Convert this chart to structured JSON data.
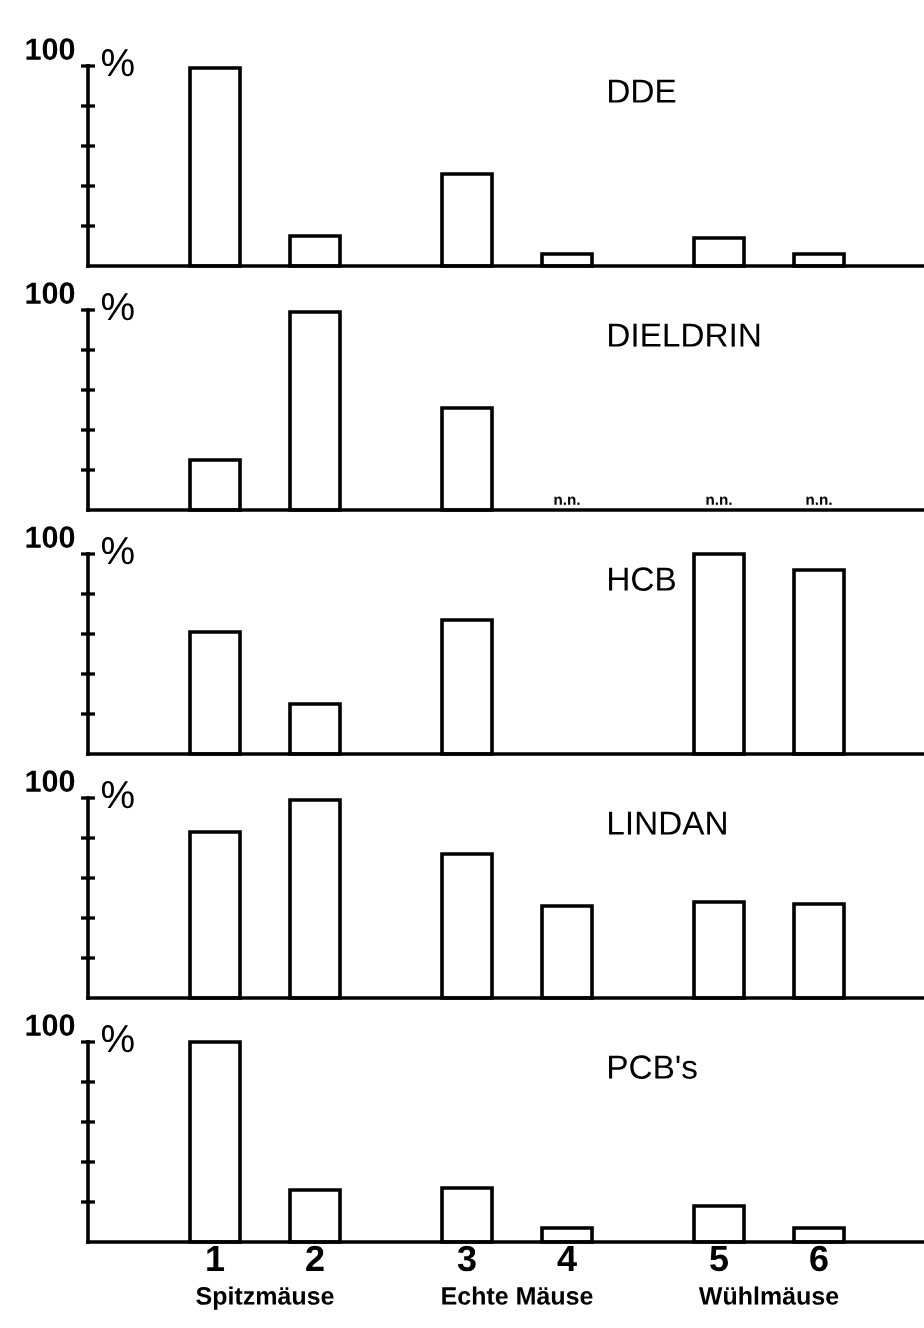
{
  "chart_data": [
    {
      "type": "bar",
      "title": "DDE",
      "ylabel": "%",
      "categories": [
        "1",
        "2",
        "3",
        "4",
        "5",
        "6"
      ],
      "values": [
        99,
        15,
        46,
        6,
        14,
        6
      ],
      "color": "#ffffff",
      "ylim": [
        0,
        100
      ],
      "yticks": [
        {
          "value": 20,
          "label": null
        },
        {
          "value": 40,
          "label": null
        },
        {
          "value": 60,
          "label": null
        },
        {
          "value": 80,
          "label": null
        },
        100
      ],
      "tick_labels": "y"
    },
    {
      "type": "bar",
      "title": "DIELDRIN",
      "ylabel": "%",
      "categories": [
        "1",
        "2",
        "3",
        "4",
        "5",
        "6"
      ],
      "values": [
        25,
        99,
        51,
        null,
        null,
        null
      ],
      "value_labels": [
        null,
        null,
        null,
        "n.n.",
        "n.n.",
        "n.n."
      ],
      "color": "#ffffff",
      "ylim": [
        0,
        100
      ],
      "yticks": [
        {
          "value": 20,
          "label": null
        },
        {
          "value": 40,
          "label": null
        },
        {
          "value": 60,
          "label": null
        },
        {
          "value": 80,
          "label": null
        },
        100
      ],
      "tick_labels": "y"
    },
    {
      "type": "bar",
      "title": "HCB",
      "ylabel": "%",
      "categories": [
        "1",
        "2",
        "3",
        "4",
        "5",
        "6"
      ],
      "values": [
        61,
        25,
        67,
        null,
        100,
        92
      ],
      "color": "#ffffff",
      "ylim": [
        0,
        100
      ],
      "yticks": [
        {
          "value": 20,
          "label": null
        },
        {
          "value": 40,
          "label": null
        },
        {
          "value": 60,
          "label": null
        },
        {
          "value": 80,
          "label": null
        },
        100
      ],
      "tick_labels": "y"
    },
    {
      "type": "bar",
      "title": "LINDAN",
      "ylabel": "%",
      "categories": [
        "1",
        "2",
        "3",
        "4",
        "5",
        "6"
      ],
      "values": [
        83,
        99,
        72,
        46,
        48,
        47
      ],
      "color": "#ffffff",
      "ylim": [
        0,
        100
      ],
      "yticks": [
        {
          "value": 20,
          "label": null
        },
        {
          "value": 40,
          "label": null
        },
        {
          "value": 60,
          "label": null
        },
        {
          "value": 80,
          "label": null
        },
        100
      ],
      "tick_labels": "y"
    },
    {
      "type": "bar",
      "title": "PCB's",
      "ylabel": "%",
      "categories": [
        "1",
        "2",
        "3",
        "4",
        "5",
        "6"
      ],
      "values": [
        100,
        26,
        27,
        7,
        18,
        7
      ],
      "color": "#ffffff",
      "ylim": [
        0,
        100
      ],
      "yticks": [
        {
          "value": 20,
          "label": null
        },
        {
          "value": 40,
          "label": null
        },
        {
          "value": 60,
          "label": null
        },
        {
          "value": 80,
          "label": null
        },
        100
      ],
      "annotations": [
        "Spitzmäuse",
        "Echte Mäuse",
        "Wühlmäuse"
      ]
    }
  ]
}
